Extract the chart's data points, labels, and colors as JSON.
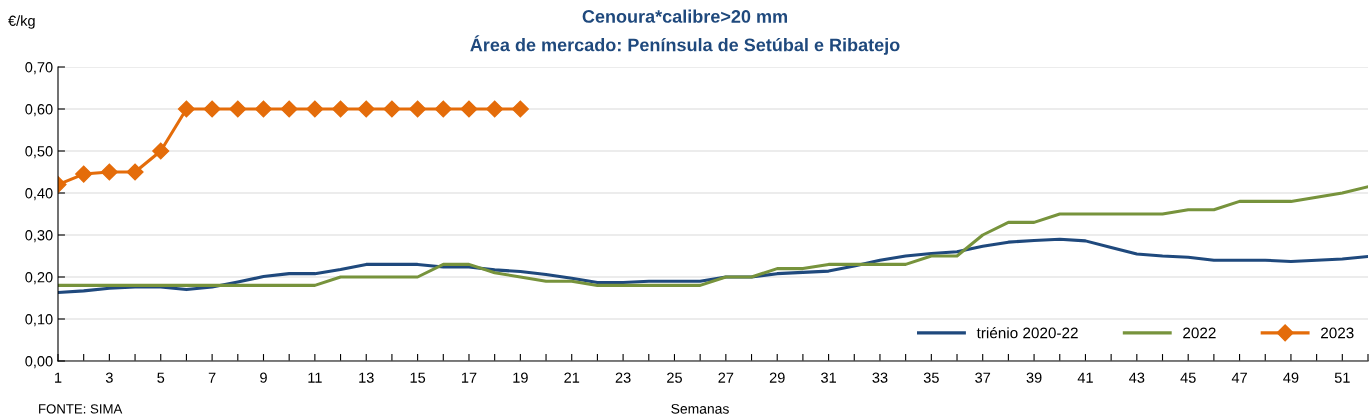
{
  "chart_data": {
    "type": "line",
    "title": "Cenoura*calibre>20 mm",
    "subtitle": "Área de mercado: Península de Setúbal e Ribatejo",
    "ylabel": "€/kg",
    "xlabel": "Semanas",
    "annotations": [
      "FONTE: SIMA"
    ],
    "categories": [
      "1",
      null,
      "3",
      null,
      "5",
      null,
      "7",
      null,
      "9",
      null,
      "11",
      null,
      "13",
      null,
      "15",
      null,
      "17",
      null,
      "19",
      null,
      "21",
      null,
      "23",
      null,
      "25",
      null,
      "27",
      null,
      "29",
      null,
      "31",
      null,
      "33",
      null,
      "35",
      null,
      "37",
      null,
      "39",
      null,
      "41",
      null,
      "43",
      null,
      "45",
      null,
      "47",
      null,
      "49",
      null,
      "51",
      null
    ],
    "series": [
      {
        "name": "triénio 2020-22",
        "color": "#1f497d",
        "marker": "none",
        "values": [
          0.163,
          0.167,
          0.173,
          0.176,
          0.176,
          0.17,
          0.176,
          0.188,
          0.201,
          0.208,
          0.208,
          0.218,
          0.23,
          0.23,
          0.23,
          0.224,
          0.224,
          0.217,
          0.213,
          0.206,
          0.197,
          0.187,
          0.187,
          0.19,
          0.19,
          0.19,
          0.2,
          0.2,
          0.208,
          0.211,
          0.214,
          0.226,
          0.24,
          0.25,
          0.256,
          0.26,
          0.273,
          0.283,
          0.287,
          0.29,
          0.286,
          0.27,
          0.255,
          0.25,
          0.247,
          0.24,
          0.24,
          0.24,
          0.237,
          0.24,
          0.243,
          0.249
        ]
      },
      {
        "name": "2022",
        "color": "#77933c",
        "marker": "none",
        "values": [
          0.18,
          0.18,
          0.18,
          0.18,
          0.18,
          0.18,
          0.18,
          0.18,
          0.18,
          0.18,
          0.18,
          0.2,
          0.2,
          0.2,
          0.2,
          0.23,
          0.23,
          0.21,
          0.2,
          0.19,
          0.19,
          0.18,
          0.18,
          0.18,
          0.18,
          0.18,
          0.2,
          0.2,
          0.22,
          0.22,
          0.23,
          0.23,
          0.23,
          0.23,
          0.25,
          0.25,
          0.3,
          0.33,
          0.33,
          0.35,
          0.35,
          0.35,
          0.35,
          0.35,
          0.36,
          0.36,
          0.38,
          0.38,
          0.38,
          0.39,
          0.4,
          0.415
        ]
      },
      {
        "name": "2023",
        "color": "#e46c0a",
        "marker": "diamond",
        "values": [
          0.42,
          0.445,
          0.45,
          0.45,
          0.5,
          0.6,
          0.6,
          0.6,
          0.6,
          0.6,
          0.6,
          0.6,
          0.6,
          0.6,
          0.6,
          0.6,
          0.6,
          0.6,
          0.6,
          null,
          null,
          null,
          null,
          null,
          null,
          null,
          null,
          null,
          null,
          null,
          null,
          null,
          null,
          null,
          null,
          null,
          null,
          null,
          null,
          null,
          null,
          null,
          null,
          null,
          null,
          null,
          null,
          null,
          null,
          null,
          null,
          null
        ]
      }
    ],
    "ylim": [
      0,
      0.7
    ],
    "yticks": [
      {
        "value": 0,
        "label": "0,00"
      },
      {
        "value": 0.1,
        "label": "0,10"
      },
      {
        "value": 0.2,
        "label": "0,20"
      },
      {
        "value": 0.3,
        "label": "0,30"
      },
      {
        "value": 0.4,
        "label": "0,40"
      },
      {
        "value": 0.5,
        "label": "0,50"
      },
      {
        "value": 0.6,
        "label": "0,60"
      },
      {
        "value": 0.7,
        "label": "0,70"
      }
    ],
    "grid": "y",
    "legend": "bottom right",
    "line_style": "solid"
  }
}
